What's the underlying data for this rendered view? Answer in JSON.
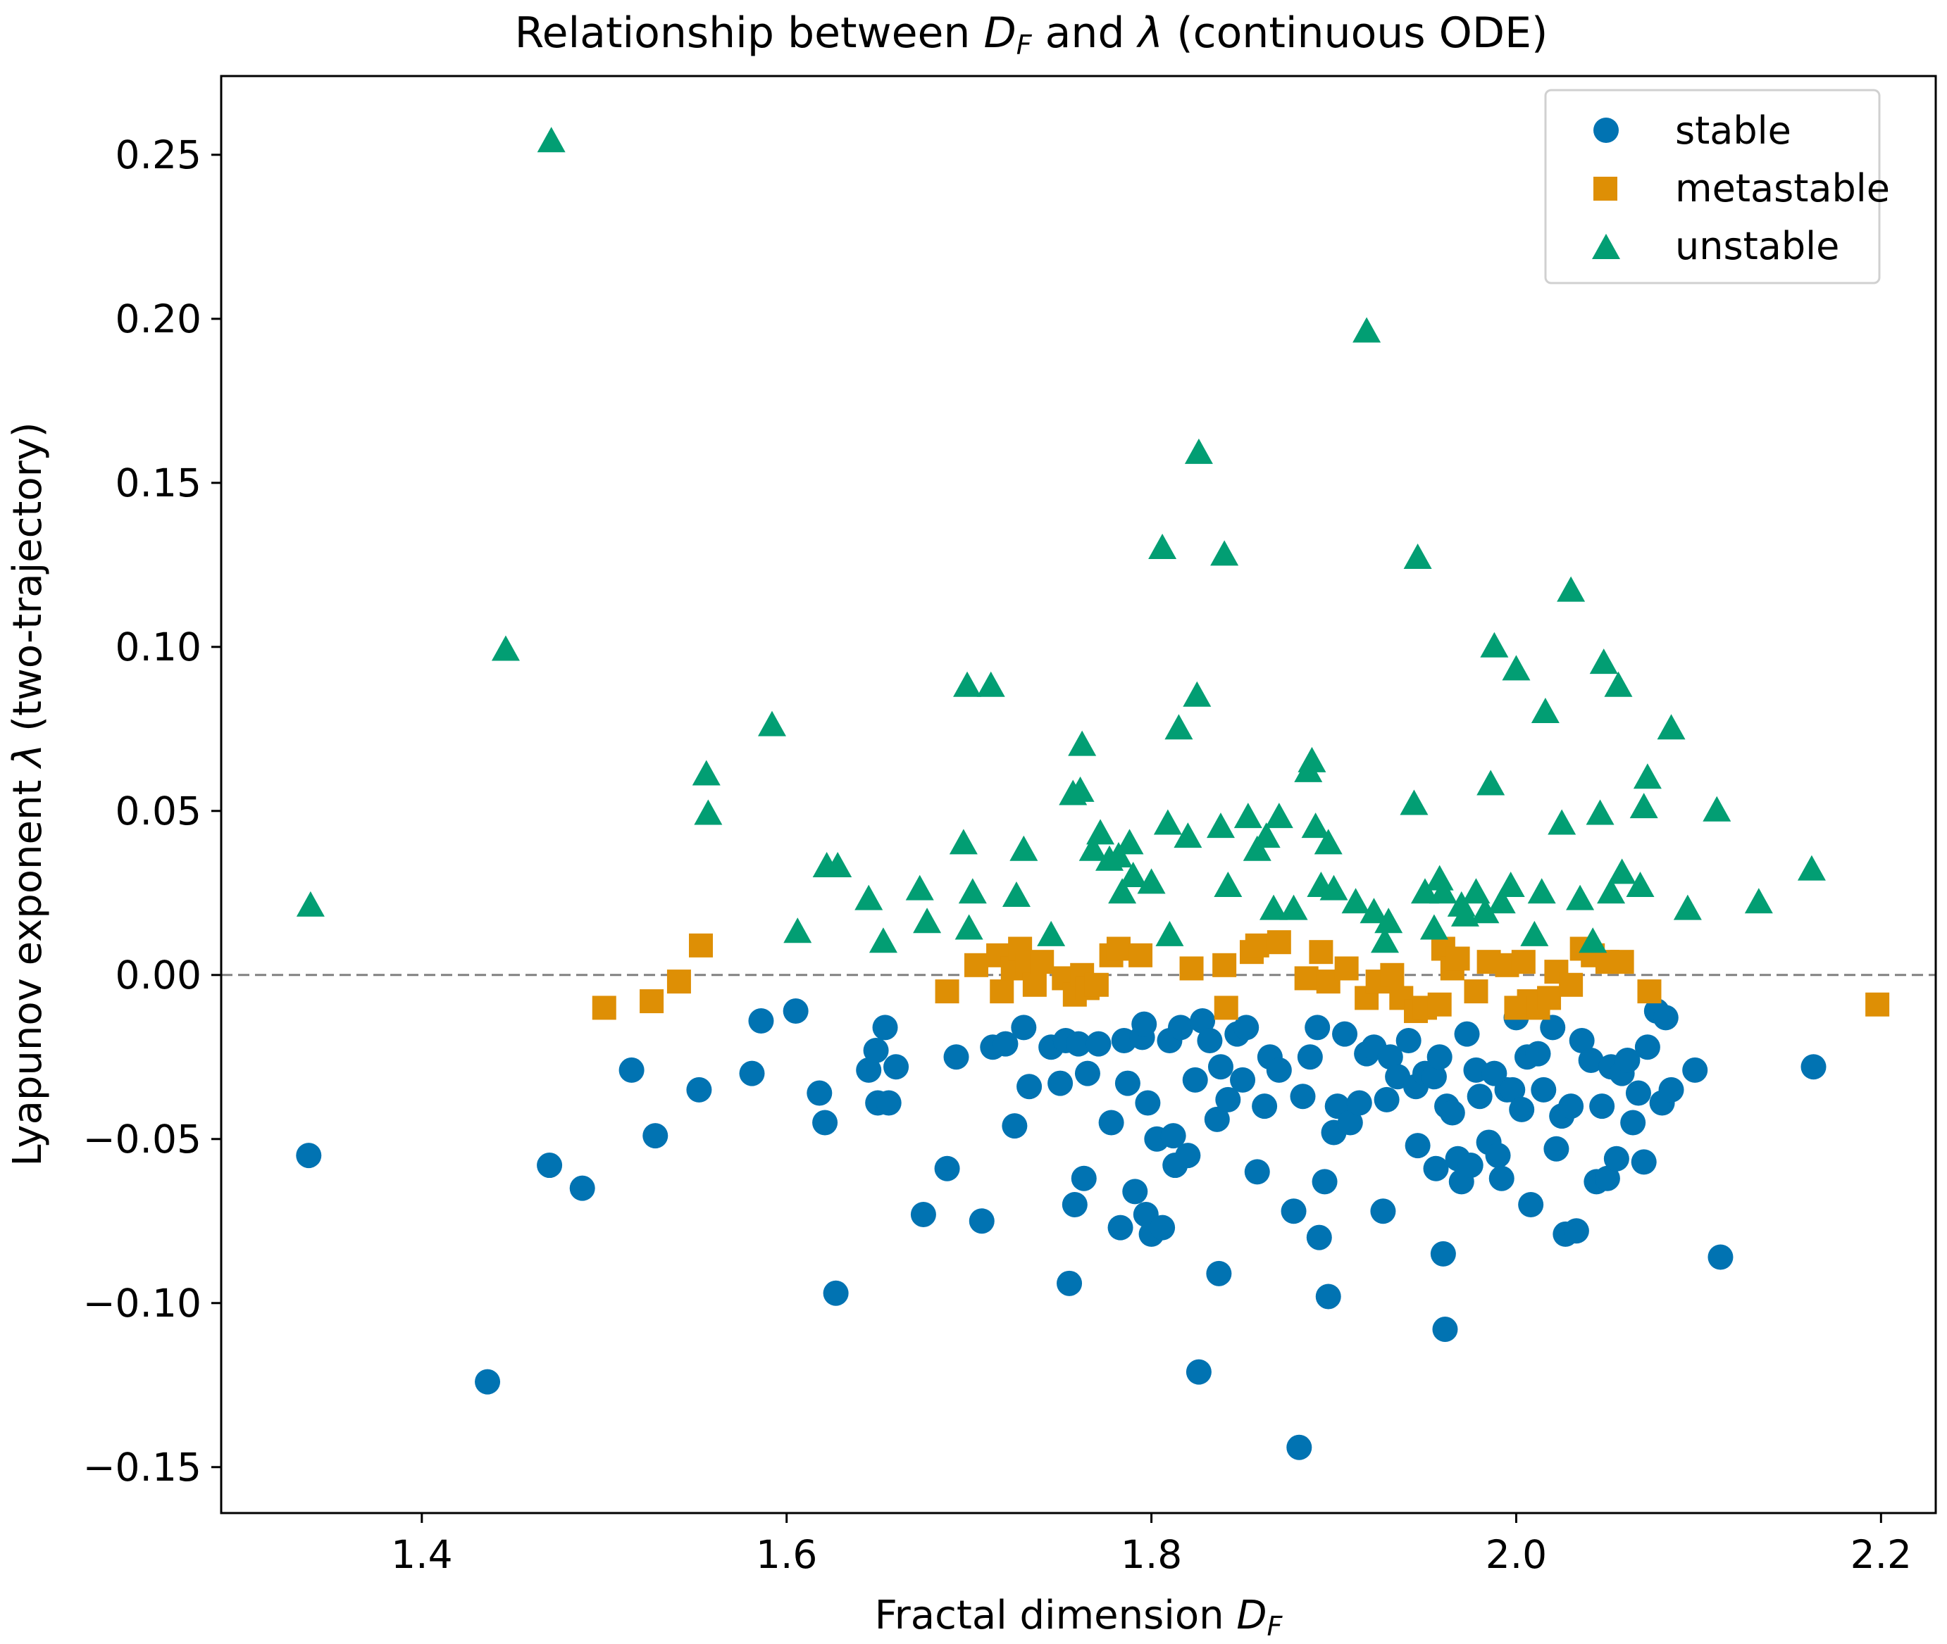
{
  "chart_data": {
    "type": "scatter",
    "title": {
      "prefix": "Relationship between ",
      "symbol_main": "D",
      "symbol_sub": "F",
      "middle": " and ",
      "lambda": "λ",
      "suffix": " (continuous ODE)"
    },
    "xlabel": {
      "text": "Fractal dimension ",
      "symbol_main": "D",
      "symbol_sub": "F"
    },
    "ylabel": {
      "text": "Lyapunov exponent ",
      "lambda": "λ",
      "suffix": " (two-trajectory)"
    },
    "xlim": [
      1.29,
      2.23
    ],
    "ylim": [
      -0.164,
      0.274
    ],
    "x_ticks": [
      1.4,
      1.6,
      1.8,
      2.0,
      2.2
    ],
    "x_tick_labels": [
      "1.4",
      "1.6",
      "1.8",
      "2.0",
      "2.2"
    ],
    "y_ticks": [
      -0.15,
      -0.1,
      -0.05,
      0.0,
      0.05,
      0.1,
      0.15,
      0.2,
      0.25
    ],
    "y_tick_labels": [
      "−0.15",
      "−0.10",
      "−0.05",
      "0.00",
      "0.05",
      "0.10",
      "0.15",
      "0.20",
      "0.25"
    ],
    "reference_line": {
      "y": 0,
      "style": "dashed",
      "color": "#808080"
    },
    "grid": false,
    "legend_position": "top-right",
    "series": [
      {
        "name": "stable",
        "marker": "circle",
        "color": "#0173b2",
        "points": [
          [
            1.338,
            -0.055
          ],
          [
            1.436,
            -0.124
          ],
          [
            1.47,
            -0.058
          ],
          [
            1.488,
            -0.065
          ],
          [
            1.515,
            -0.029
          ],
          [
            1.528,
            -0.049
          ],
          [
            1.552,
            -0.035
          ],
          [
            1.581,
            -0.03
          ],
          [
            1.586,
            -0.014
          ],
          [
            1.605,
            -0.011
          ],
          [
            1.618,
            -0.036
          ],
          [
            1.621,
            -0.045
          ],
          [
            1.627,
            -0.097
          ],
          [
            1.645,
            -0.029
          ],
          [
            1.649,
            -0.023
          ],
          [
            1.65,
            -0.039
          ],
          [
            1.654,
            -0.016
          ],
          [
            1.656,
            -0.039
          ],
          [
            1.66,
            -0.028
          ],
          [
            1.675,
            -0.073
          ],
          [
            1.688,
            -0.059
          ],
          [
            1.693,
            -0.025
          ],
          [
            1.707,
            -0.075
          ],
          [
            1.713,
            -0.022
          ],
          [
            1.72,
            -0.021
          ],
          [
            1.725,
            -0.046
          ],
          [
            1.73,
            -0.016
          ],
          [
            1.733,
            -0.034
          ],
          [
            1.745,
            -0.022
          ],
          [
            1.75,
            -0.033
          ],
          [
            1.753,
            -0.02
          ],
          [
            1.755,
            -0.094
          ],
          [
            1.758,
            -0.07
          ],
          [
            1.76,
            -0.021
          ],
          [
            1.763,
            -0.062
          ],
          [
            1.765,
            -0.03
          ],
          [
            1.771,
            -0.021
          ],
          [
            1.778,
            -0.045
          ],
          [
            1.783,
            -0.077
          ],
          [
            1.785,
            -0.02
          ],
          [
            1.787,
            -0.033
          ],
          [
            1.791,
            -0.066
          ],
          [
            1.795,
            -0.019
          ],
          [
            1.796,
            -0.015
          ],
          [
            1.797,
            -0.073
          ],
          [
            1.798,
            -0.039
          ],
          [
            1.8,
            -0.079
          ],
          [
            1.803,
            -0.05
          ],
          [
            1.806,
            -0.077
          ],
          [
            1.81,
            -0.02
          ],
          [
            1.812,
            -0.049
          ],
          [
            1.813,
            -0.058
          ],
          [
            1.816,
            -0.016
          ],
          [
            1.82,
            -0.055
          ],
          [
            1.824,
            -0.032
          ],
          [
            1.826,
            -0.121
          ],
          [
            1.828,
            -0.014
          ],
          [
            1.832,
            -0.02
          ],
          [
            1.836,
            -0.044
          ],
          [
            1.837,
            -0.091
          ],
          [
            1.838,
            -0.028
          ],
          [
            1.842,
            -0.038
          ],
          [
            1.847,
            -0.018
          ],
          [
            1.85,
            -0.032
          ],
          [
            1.852,
            -0.016
          ],
          [
            1.858,
            -0.06
          ],
          [
            1.862,
            -0.04
          ],
          [
            1.865,
            -0.025
          ],
          [
            1.87,
            -0.029
          ],
          [
            1.878,
            -0.072
          ],
          [
            1.881,
            -0.144
          ],
          [
            1.883,
            -0.037
          ],
          [
            1.887,
            -0.025
          ],
          [
            1.891,
            -0.016
          ],
          [
            1.892,
            -0.08
          ],
          [
            1.895,
            -0.063
          ],
          [
            1.897,
            -0.098
          ],
          [
            1.9,
            -0.048
          ],
          [
            1.902,
            -0.04
          ],
          [
            1.906,
            -0.018
          ],
          [
            1.909,
            -0.045
          ],
          [
            1.914,
            -0.039
          ],
          [
            1.918,
            -0.024
          ],
          [
            1.922,
            -0.022
          ],
          [
            1.927,
            -0.072
          ],
          [
            1.929,
            -0.038
          ],
          [
            1.931,
            -0.025
          ],
          [
            1.935,
            -0.031
          ],
          [
            1.941,
            -0.02
          ],
          [
            1.945,
            -0.034
          ],
          [
            1.946,
            -0.052
          ],
          [
            1.95,
            -0.03
          ],
          [
            1.955,
            -0.031
          ],
          [
            1.956,
            -0.059
          ],
          [
            1.958,
            -0.025
          ],
          [
            1.96,
            -0.085
          ],
          [
            1.961,
            -0.108
          ],
          [
            1.962,
            -0.04
          ],
          [
            1.965,
            -0.042
          ],
          [
            1.968,
            -0.056
          ],
          [
            1.97,
            -0.063
          ],
          [
            1.973,
            -0.018
          ],
          [
            1.975,
            -0.058
          ],
          [
            1.978,
            -0.029
          ],
          [
            1.98,
            -0.037
          ],
          [
            1.985,
            -0.051
          ],
          [
            1.988,
            -0.03
          ],
          [
            1.99,
            -0.055
          ],
          [
            1.992,
            -0.062
          ],
          [
            1.995,
            -0.035
          ],
          [
            1.998,
            -0.035
          ],
          [
            2.0,
            -0.013
          ],
          [
            2.003,
            -0.041
          ],
          [
            2.006,
            -0.025
          ],
          [
            2.008,
            -0.07
          ],
          [
            2.012,
            -0.024
          ],
          [
            2.015,
            -0.035
          ],
          [
            2.02,
            -0.016
          ],
          [
            2.022,
            -0.053
          ],
          [
            2.025,
            -0.043
          ],
          [
            2.027,
            -0.079
          ],
          [
            2.03,
            -0.04
          ],
          [
            2.033,
            -0.078
          ],
          [
            2.036,
            -0.02
          ],
          [
            2.041,
            -0.026
          ],
          [
            2.044,
            -0.063
          ],
          [
            2.047,
            -0.04
          ],
          [
            2.05,
            -0.062
          ],
          [
            2.052,
            -0.028
          ],
          [
            2.055,
            -0.056
          ],
          [
            2.058,
            -0.03
          ],
          [
            2.061,
            -0.026
          ],
          [
            2.064,
            -0.045
          ],
          [
            2.067,
            -0.036
          ],
          [
            2.07,
            -0.057
          ],
          [
            2.072,
            -0.022
          ],
          [
            2.077,
            -0.011
          ],
          [
            2.08,
            -0.039
          ],
          [
            2.082,
            -0.013
          ],
          [
            2.085,
            -0.035
          ],
          [
            2.098,
            -0.029
          ],
          [
            2.112,
            -0.086
          ],
          [
            2.163,
            -0.028
          ]
        ]
      },
      {
        "name": "metastable",
        "marker": "square",
        "color": "#de8f05",
        "points": [
          [
            1.5,
            -0.01
          ],
          [
            1.526,
            -0.008
          ],
          [
            1.541,
            -0.002
          ],
          [
            1.553,
            0.009
          ],
          [
            1.688,
            -0.005
          ],
          [
            1.704,
            0.003
          ],
          [
            1.716,
            0.006
          ],
          [
            1.718,
            -0.005
          ],
          [
            1.724,
            0.002
          ],
          [
            1.728,
            0.008
          ],
          [
            1.732,
            0.003
          ],
          [
            1.736,
            -0.003
          ],
          [
            1.74,
            0.004
          ],
          [
            1.752,
            -0.001
          ],
          [
            1.758,
            -0.006
          ],
          [
            1.762,
            0.0
          ],
          [
            1.765,
            -0.004
          ],
          [
            1.77,
            -0.003
          ],
          [
            1.778,
            0.006
          ],
          [
            1.782,
            0.008
          ],
          [
            1.794,
            0.006
          ],
          [
            1.822,
            0.002
          ],
          [
            1.84,
            0.003
          ],
          [
            1.841,
            -0.01
          ],
          [
            1.855,
            0.007
          ],
          [
            1.858,
            0.009
          ],
          [
            1.87,
            0.01
          ],
          [
            1.885,
            -0.001
          ],
          [
            1.893,
            0.007
          ],
          [
            1.897,
            -0.002
          ],
          [
            1.907,
            0.002
          ],
          [
            1.918,
            -0.007
          ],
          [
            1.924,
            -0.002
          ],
          [
            1.932,
            0.0
          ],
          [
            1.937,
            -0.007
          ],
          [
            1.945,
            -0.011
          ],
          [
            1.95,
            -0.01
          ],
          [
            1.958,
            -0.009
          ],
          [
            1.96,
            0.008
          ],
          [
            1.965,
            0.002
          ],
          [
            1.968,
            0.005
          ],
          [
            1.978,
            -0.005
          ],
          [
            1.985,
            0.004
          ],
          [
            1.995,
            0.003
          ],
          [
            2.0,
            -0.01
          ],
          [
            2.004,
            0.004
          ],
          [
            2.007,
            -0.008
          ],
          [
            2.012,
            -0.01
          ],
          [
            2.018,
            -0.007
          ],
          [
            2.022,
            0.001
          ],
          [
            2.03,
            -0.003
          ],
          [
            2.036,
            0.008
          ],
          [
            2.042,
            0.006
          ],
          [
            2.05,
            0.004
          ],
          [
            2.058,
            0.004
          ],
          [
            2.073,
            -0.005
          ],
          [
            2.198,
            -0.009
          ]
        ]
      },
      {
        "name": "unstable",
        "marker": "triangle",
        "color": "#029e73",
        "points": [
          [
            1.339,
            0.021
          ],
          [
            1.446,
            0.099
          ],
          [
            1.471,
            0.254
          ],
          [
            1.556,
            0.061
          ],
          [
            1.557,
            0.049
          ],
          [
            1.592,
            0.076
          ],
          [
            1.606,
            0.013
          ],
          [
            1.622,
            0.033
          ],
          [
            1.628,
            0.033
          ],
          [
            1.645,
            0.023
          ],
          [
            1.653,
            0.01
          ],
          [
            1.673,
            0.026
          ],
          [
            1.677,
            0.016
          ],
          [
            1.697,
            0.04
          ],
          [
            1.699,
            0.088
          ],
          [
            1.7,
            0.014
          ],
          [
            1.702,
            0.025
          ],
          [
            1.712,
            0.088
          ],
          [
            1.726,
            0.024
          ],
          [
            1.73,
            0.038
          ],
          [
            1.745,
            0.012
          ],
          [
            1.757,
            0.055
          ],
          [
            1.761,
            0.056
          ],
          [
            1.762,
            0.07
          ],
          [
            1.768,
            0.038
          ],
          [
            1.772,
            0.043
          ],
          [
            1.777,
            0.035
          ],
          [
            1.782,
            0.036
          ],
          [
            1.784,
            0.025
          ],
          [
            1.788,
            0.04
          ],
          [
            1.79,
            0.03
          ],
          [
            1.8,
            0.028
          ],
          [
            1.806,
            0.13
          ],
          [
            1.809,
            0.046
          ],
          [
            1.81,
            0.012
          ],
          [
            1.815,
            0.075
          ],
          [
            1.82,
            0.042
          ],
          [
            1.825,
            0.085
          ],
          [
            1.826,
            0.159
          ],
          [
            1.838,
            0.045
          ],
          [
            1.84,
            0.128
          ],
          [
            1.842,
            0.027
          ],
          [
            1.853,
            0.048
          ],
          [
            1.858,
            0.038
          ],
          [
            1.863,
            0.042
          ],
          [
            1.867,
            0.02
          ],
          [
            1.87,
            0.048
          ],
          [
            1.878,
            0.02
          ],
          [
            1.886,
            0.062
          ],
          [
            1.888,
            0.065
          ],
          [
            1.89,
            0.045
          ],
          [
            1.893,
            0.027
          ],
          [
            1.897,
            0.04
          ],
          [
            1.9,
            0.026
          ],
          [
            1.912,
            0.022
          ],
          [
            1.918,
            0.196
          ],
          [
            1.922,
            0.019
          ],
          [
            1.928,
            0.01
          ],
          [
            1.93,
            0.016
          ],
          [
            1.944,
            0.052
          ],
          [
            1.946,
            0.127
          ],
          [
            1.95,
            0.025
          ],
          [
            1.955,
            0.014
          ],
          [
            1.958,
            0.029
          ],
          [
            1.96,
            0.025
          ],
          [
            1.97,
            0.021
          ],
          [
            1.972,
            0.018
          ],
          [
            1.978,
            0.025
          ],
          [
            1.983,
            0.019
          ],
          [
            1.986,
            0.058
          ],
          [
            1.988,
            0.1
          ],
          [
            1.992,
            0.022
          ],
          [
            1.997,
            0.027
          ],
          [
            2.0,
            0.093
          ],
          [
            2.01,
            0.012
          ],
          [
            2.014,
            0.025
          ],
          [
            2.016,
            0.08
          ],
          [
            2.025,
            0.046
          ],
          [
            2.03,
            0.117
          ],
          [
            2.035,
            0.023
          ],
          [
            2.042,
            0.01
          ],
          [
            2.046,
            0.049
          ],
          [
            2.048,
            0.095
          ],
          [
            2.052,
            0.025
          ],
          [
            2.056,
            0.088
          ],
          [
            2.058,
            0.031
          ],
          [
            2.068,
            0.027
          ],
          [
            2.07,
            0.051
          ],
          [
            2.072,
            0.06
          ],
          [
            2.085,
            0.075
          ],
          [
            2.094,
            0.02
          ],
          [
            2.11,
            0.05
          ],
          [
            2.133,
            0.022
          ],
          [
            2.162,
            0.032
          ]
        ]
      }
    ]
  }
}
